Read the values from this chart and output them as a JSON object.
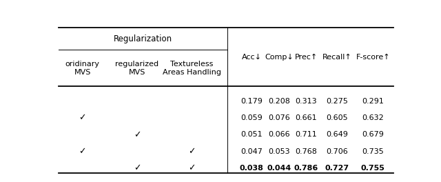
{
  "col_headers_left": [
    "oridinary\nMVS",
    "regularized\nMVS",
    "Textureless\nAreas Handling"
  ],
  "col_headers_right": [
    "Acc↓",
    "Comp↓",
    "Prec↑",
    "Recall↑",
    "F-score↑"
  ],
  "checkmarks": [
    [
      false,
      false,
      false
    ],
    [
      true,
      false,
      false
    ],
    [
      false,
      true,
      false
    ],
    [
      true,
      false,
      true
    ],
    [
      false,
      true,
      true
    ]
  ],
  "values": [
    [
      "0.179",
      "0.208",
      "0.313",
      "0.275",
      "0.291"
    ],
    [
      "0.059",
      "0.076",
      "0.661",
      "0.605",
      "0.632"
    ],
    [
      "0.051",
      "0.066",
      "0.711",
      "0.649",
      "0.679"
    ],
    [
      "0.047",
      "0.053",
      "0.768",
      "0.706",
      "0.735"
    ],
    [
      "0.038",
      "0.044",
      "0.786",
      "0.727",
      "0.755"
    ]
  ],
  "bold_row": 4,
  "background_color": "#ffffff",
  "figsize": [
    6.4,
    2.64
  ],
  "dpi": 100
}
